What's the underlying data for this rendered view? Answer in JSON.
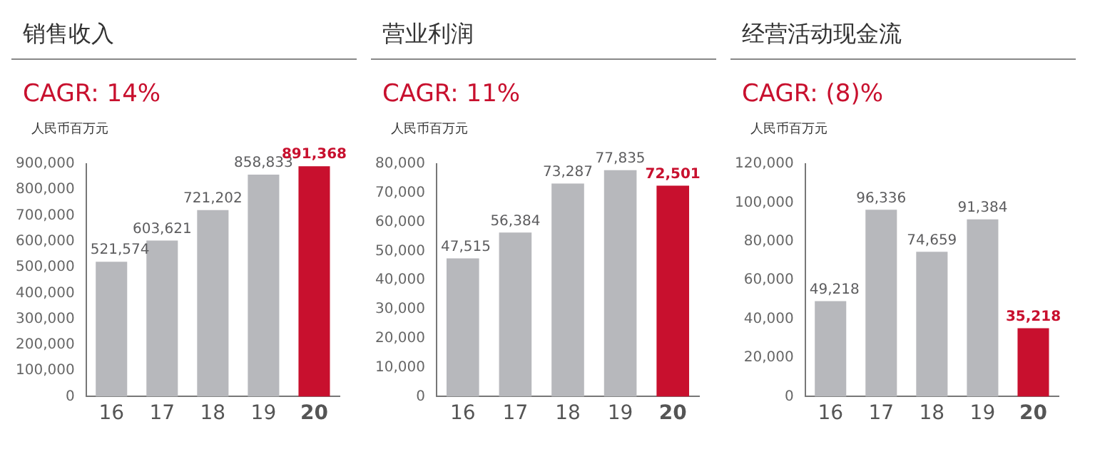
{
  "chart_data": [
    {
      "type": "bar",
      "title": "销售收入",
      "subtitle": "CAGR: 14%",
      "ylabel": "人民币百万元",
      "categories": [
        "16",
        "17",
        "18",
        "19",
        "20"
      ],
      "values": [
        521574,
        603621,
        721202,
        858833,
        891368
      ],
      "value_labels": [
        "521,574",
        "603,621",
        "721,202",
        "858,833",
        "891,368"
      ],
      "colors": [
        "#b7b8bc",
        "#b7b8bc",
        "#b7b8bc",
        "#b7b8bc",
        "#c8102e"
      ],
      "ylim": [
        0,
        900000
      ],
      "yticks": [
        {
          "value": 0,
          "label": "0"
        },
        {
          "value": 100000,
          "label": "100,000"
        },
        {
          "value": 200000,
          "label": "200,000"
        },
        {
          "value": 300000,
          "label": "300,000"
        },
        {
          "value": 400000,
          "label": "400,000"
        },
        {
          "value": 500000,
          "label": "500,000"
        },
        {
          "value": 600000,
          "label": "600,000"
        },
        {
          "value": 700000,
          "label": "700,000"
        },
        {
          "value": 800000,
          "label": "800,000"
        },
        {
          "value": 900000,
          "label": "900,000"
        }
      ],
      "grid": false,
      "legend": false
    },
    {
      "type": "bar",
      "title": "营业利润",
      "subtitle": "CAGR: 11%",
      "ylabel": "人民币百万元",
      "categories": [
        "16",
        "17",
        "18",
        "19",
        "20"
      ],
      "values": [
        47515,
        56384,
        73287,
        77835,
        72501
      ],
      "value_labels": [
        "47,515",
        "56,384",
        "73,287",
        "77,835",
        "72,501"
      ],
      "colors": [
        "#b7b8bc",
        "#b7b8bc",
        "#b7b8bc",
        "#b7b8bc",
        "#c8102e"
      ],
      "ylim": [
        0,
        80000
      ],
      "yticks": [
        {
          "value": 0,
          "label": "0"
        },
        {
          "value": 10000,
          "label": "10,000"
        },
        {
          "value": 20000,
          "label": "20,000"
        },
        {
          "value": 30000,
          "label": "30,000"
        },
        {
          "value": 40000,
          "label": "40,000"
        },
        {
          "value": 50000,
          "label": "50,000"
        },
        {
          "value": 60000,
          "label": "60,000"
        },
        {
          "value": 70000,
          "label": "70,000"
        },
        {
          "value": 80000,
          "label": "80,000"
        }
      ],
      "grid": false,
      "legend": false
    },
    {
      "type": "bar",
      "title": "经营活动现金流",
      "subtitle": "CAGR: (8)%",
      "ylabel": "人民币百万元",
      "categories": [
        "16",
        "17",
        "18",
        "19",
        "20"
      ],
      "values": [
        49218,
        96336,
        74659,
        91384,
        35218
      ],
      "value_labels": [
        "49,218",
        "96,336",
        "74,659",
        "91,384",
        "35,218"
      ],
      "colors": [
        "#b7b8bc",
        "#b7b8bc",
        "#b7b8bc",
        "#b7b8bc",
        "#c8102e"
      ],
      "ylim": [
        0,
        120000
      ],
      "yticks": [
        {
          "value": 0,
          "label": "0"
        },
        {
          "value": 20000,
          "label": "20,000"
        },
        {
          "value": 40000,
          "label": "40,000"
        },
        {
          "value": 60000,
          "label": "60,000"
        },
        {
          "value": 80000,
          "label": "80,000"
        },
        {
          "value": 100000,
          "label": "100,000"
        },
        {
          "value": 120000,
          "label": "120,000"
        }
      ],
      "grid": false,
      "legend": false
    }
  ]
}
